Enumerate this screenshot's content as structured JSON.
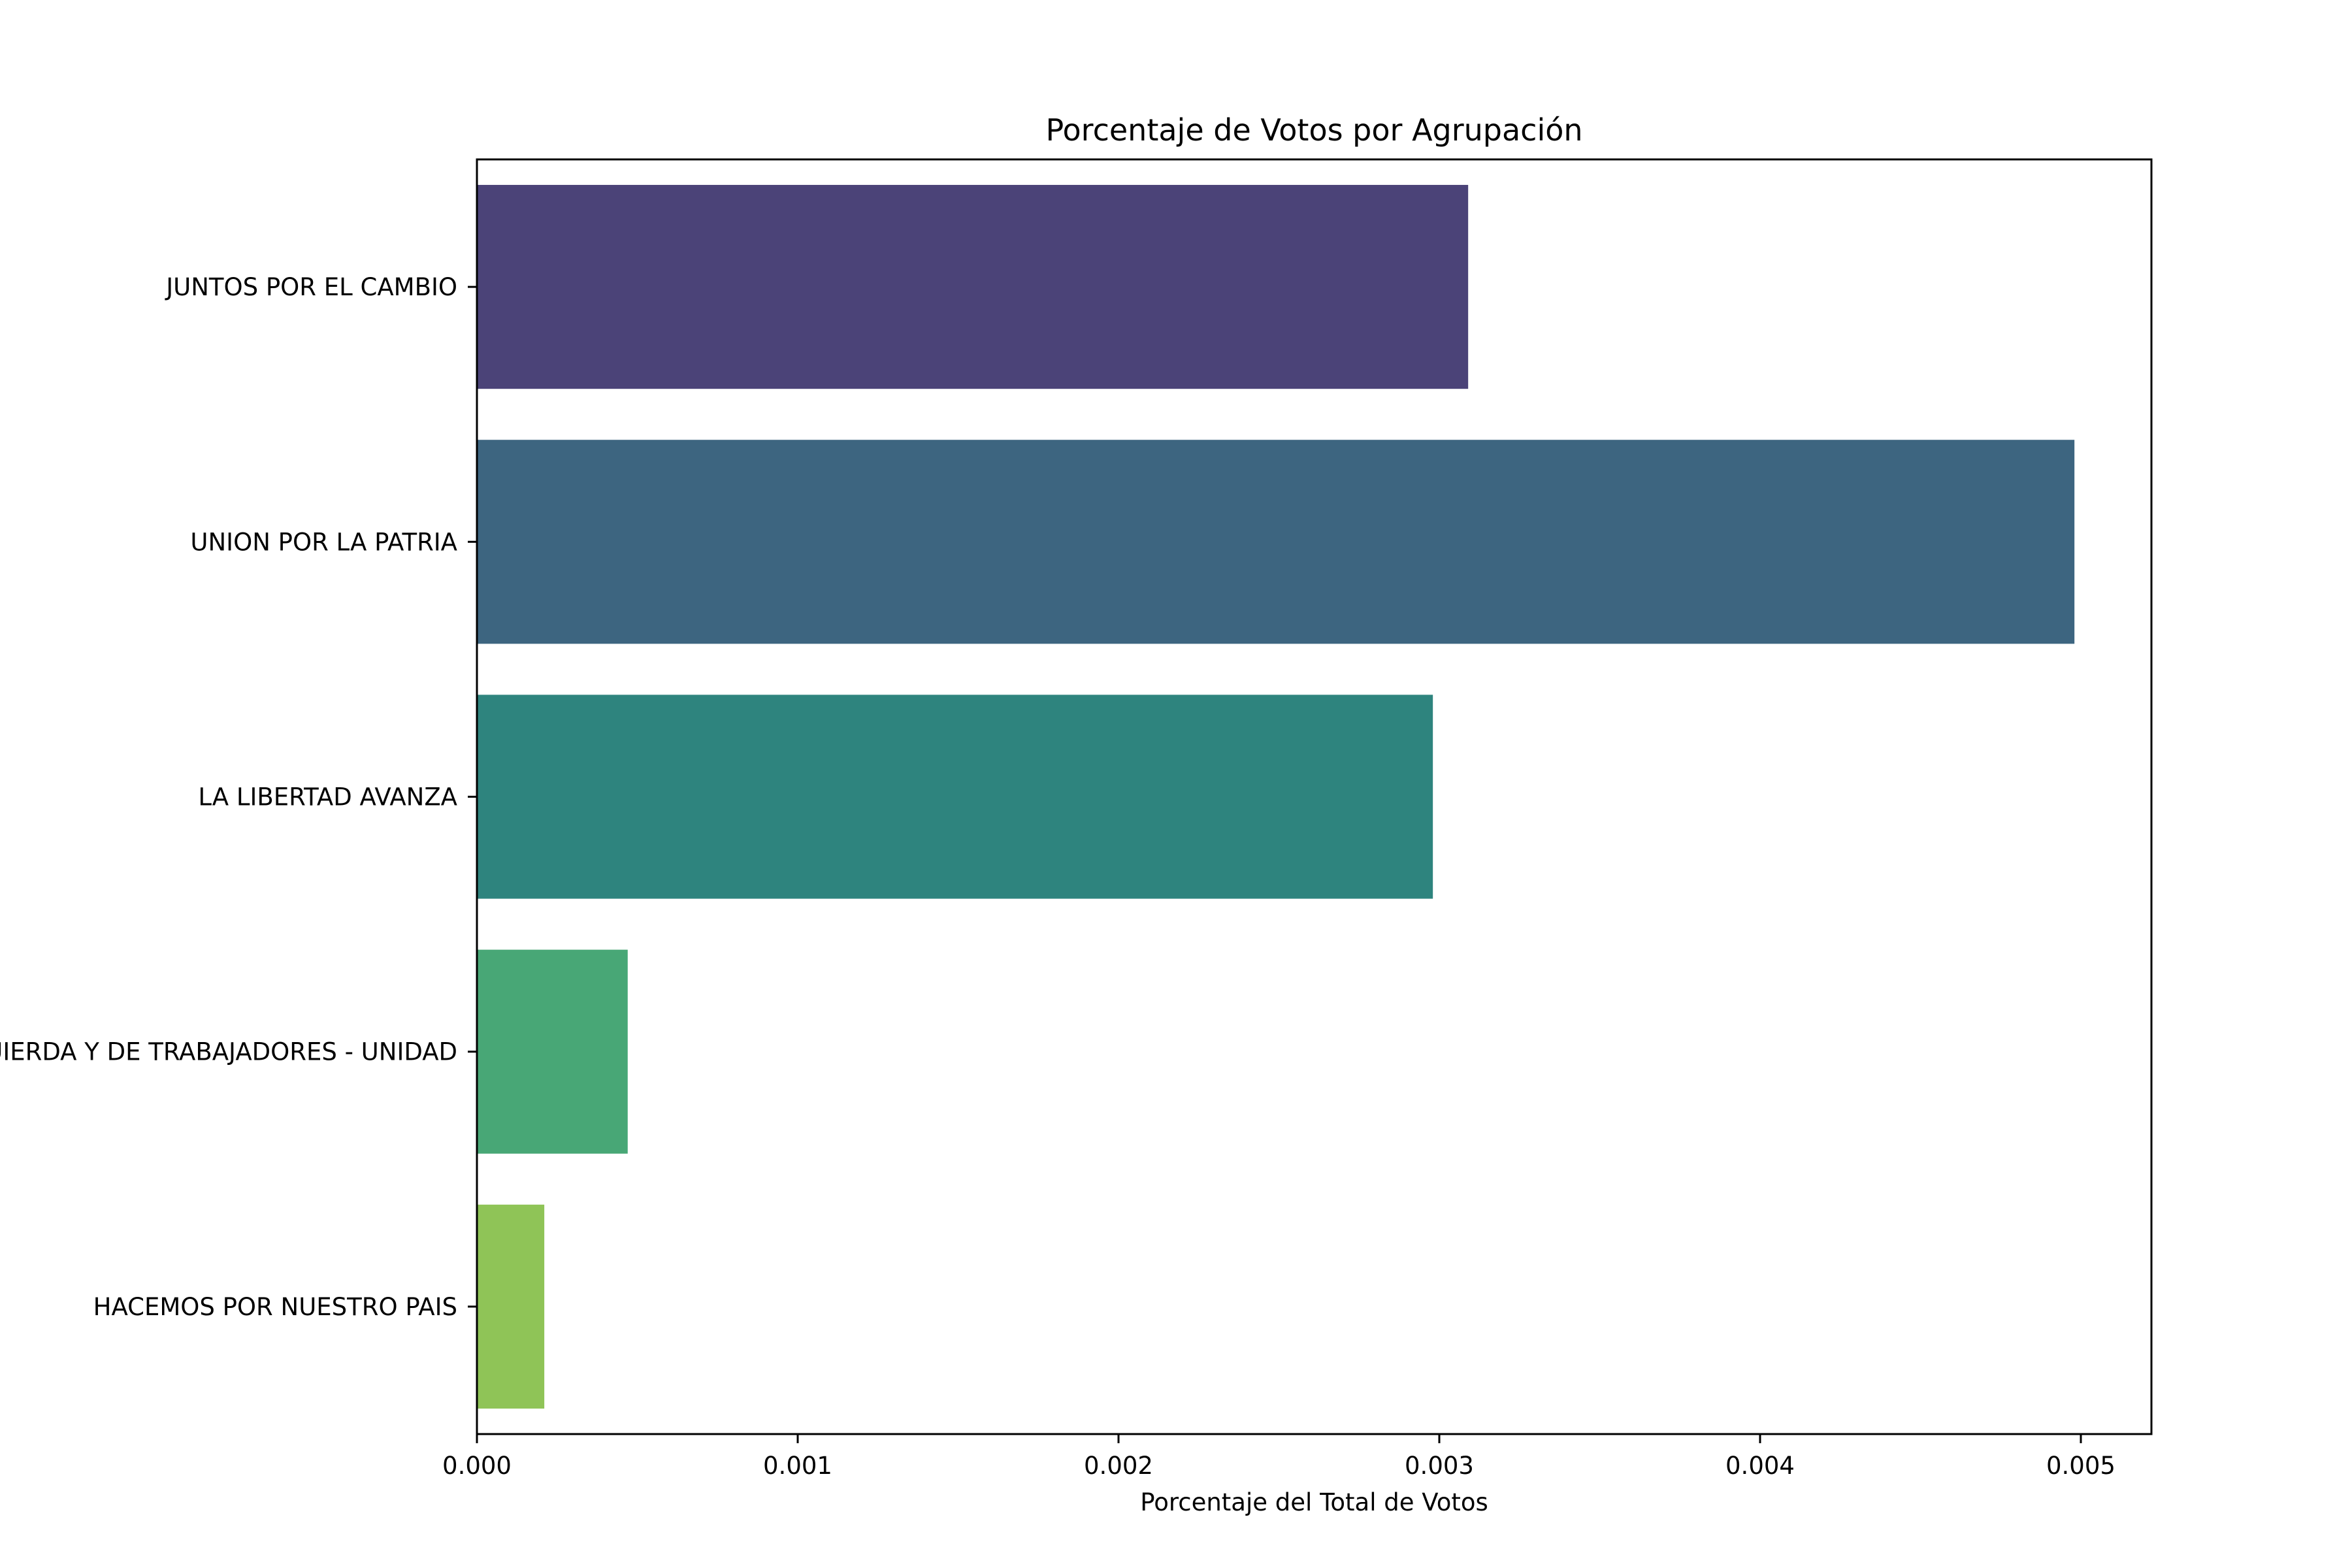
{
  "chart_data": {
    "type": "bar",
    "orientation": "horizontal",
    "title": "Porcentaje de Votos por Agrupación",
    "xlabel": "Porcentaje del Total de Votos",
    "ylabel": "",
    "categories": [
      "JUNTOS POR EL CAMBIO",
      "UNION POR LA PATRIA",
      "LA LIBERTAD AVANZA",
      "FRENTE DE IZQUIERDA Y DE TRABAJADORES - UNIDAD",
      "HACEMOS POR NUESTRO PAIS"
    ],
    "values": [
      0.00309,
      0.00498,
      0.00298,
      0.00047,
      0.00021
    ],
    "colors": [
      "#4b4378",
      "#3d6580",
      "#2e847e",
      "#48a776",
      "#8fc457"
    ],
    "xlim": [
      0,
      0.00522
    ],
    "xticks": [
      0.0,
      0.001,
      0.002,
      0.003,
      0.004,
      0.005
    ],
    "xtick_labels": [
      "0.000",
      "0.001",
      "0.002",
      "0.003",
      "0.004",
      "0.005"
    ],
    "grid": false,
    "legend": "none"
  }
}
